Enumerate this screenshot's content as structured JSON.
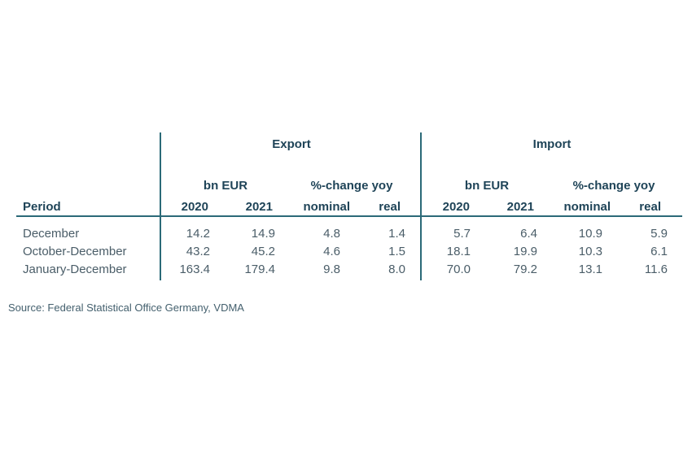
{
  "chart_data": {
    "type": "table",
    "groups": [
      "Export",
      "Import"
    ],
    "unit_labels": [
      "bn EUR",
      "%-change yoy"
    ],
    "first_column_header": "Period",
    "subheaders": [
      "2020",
      "2021",
      "nominal",
      "real"
    ],
    "rows": [
      {
        "period": "December",
        "export": [
          "14.2",
          "14.9",
          "4.8",
          "1.4"
        ],
        "import": [
          "5.7",
          "6.4",
          "10.9",
          "5.9"
        ]
      },
      {
        "period": "October-December",
        "export": [
          "43.2",
          "45.2",
          "4.6",
          "1.5"
        ],
        "import": [
          "18.1",
          "19.9",
          "10.3",
          "6.1"
        ]
      },
      {
        "period": "January-December",
        "export": [
          "163.4",
          "179.4",
          "9.8",
          "8.0"
        ],
        "import": [
          "70.0",
          "79.2",
          "13.1",
          "11.6"
        ]
      }
    ]
  },
  "source": "Source: Federal Statistical Office Germany, VDMA",
  "colors": {
    "rule": "#2b6a78",
    "header_text": "#1f4458",
    "cell_text": "#4a5d68"
  }
}
